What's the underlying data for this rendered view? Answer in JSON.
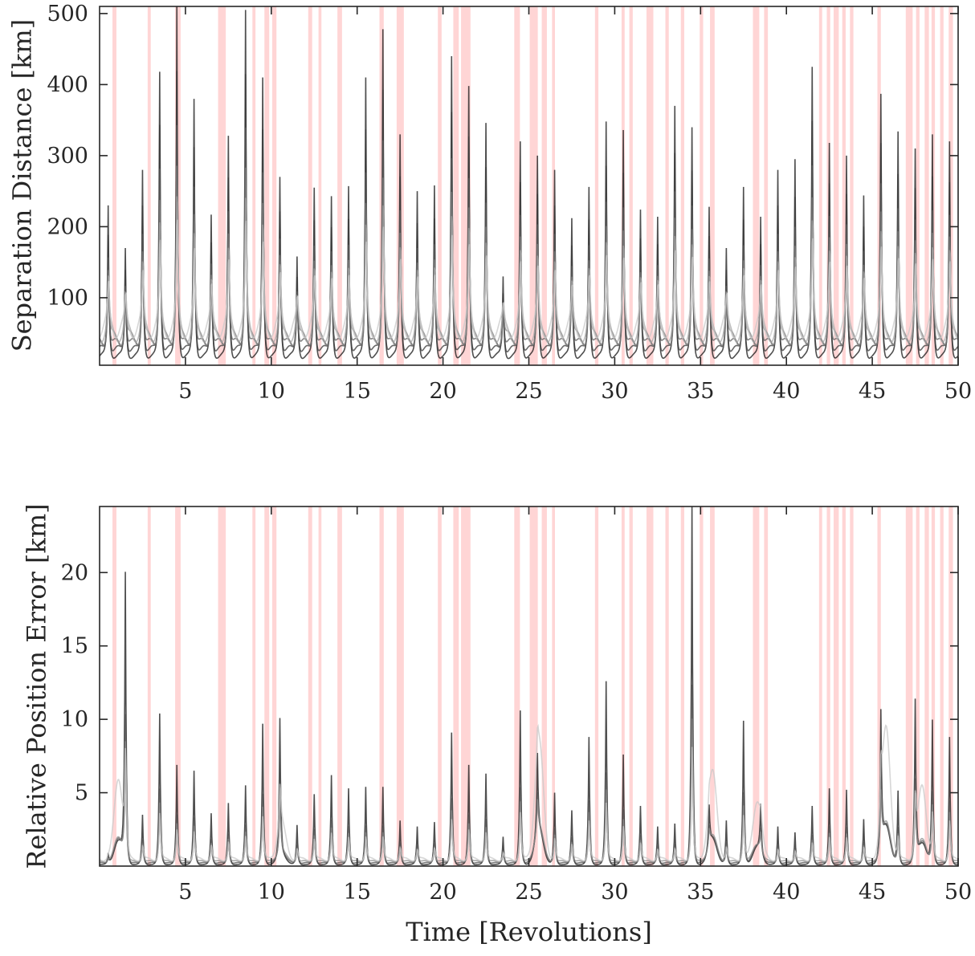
{
  "chart_data": [
    {
      "type": "line",
      "ylabel": "Separation Distance [km]",
      "xlabel": "",
      "xlim": [
        0,
        50
      ],
      "ylim": [
        5,
        510
      ],
      "x_ticks": [
        5,
        10,
        15,
        20,
        25,
        30,
        35,
        40,
        45,
        50
      ],
      "y_ticks": [
        100,
        200,
        300,
        400,
        500
      ],
      "grid": false,
      "line_color": "#000000",
      "shaded_band_color": "#ffb3b3",
      "spike_times": [
        0.5,
        1.5,
        2.5,
        3.5,
        4.5,
        5.5,
        6.5,
        7.5,
        8.5,
        9.5,
        10.5,
        11.5,
        12.5,
        13.5,
        14.5,
        15.5,
        16.5,
        17.5,
        18.5,
        19.5,
        20.5,
        21.5,
        22.5,
        23.5,
        24.5,
        25.5,
        26.5,
        27.5,
        28.5,
        29.5,
        30.5,
        31.5,
        32.5,
        33.5,
        34.5,
        35.5,
        36.5,
        37.5,
        38.5,
        39.5,
        40.5,
        41.5,
        42.5,
        43.5,
        44.5,
        45.5,
        46.5,
        47.5,
        48.5,
        49.5
      ],
      "spike_peaks": [
        230,
        170,
        280,
        418,
        510,
        380,
        217,
        328,
        505,
        410,
        270,
        158,
        255,
        243,
        257,
        410,
        478,
        330,
        250,
        258,
        440,
        398,
        346,
        130,
        320,
        300,
        280,
        212,
        256,
        348,
        336,
        224,
        214,
        370,
        340,
        228,
        170,
        256,
        214,
        280,
        295,
        425,
        318,
        300,
        244,
        387,
        334,
        310,
        330,
        320
      ],
      "baseline_levels": [
        18,
        26,
        34,
        42,
        50,
        58
      ]
    },
    {
      "type": "line",
      "ylabel": "Relative Position Error [km]",
      "xlabel": "Time [Revolutions]",
      "xlim": [
        0,
        50
      ],
      "ylim": [
        0,
        24.5
      ],
      "x_ticks": [
        5,
        10,
        15,
        20,
        25,
        30,
        35,
        40,
        45,
        50
      ],
      "y_ticks": [
        5,
        10,
        15,
        20
      ],
      "grid": false,
      "line_color": "#000000",
      "shaded_band_color": "#ffb3b3",
      "spike_times": [
        0.5,
        1.5,
        2.5,
        3.5,
        4.5,
        5.5,
        6.5,
        7.5,
        8.5,
        9.5,
        10.5,
        11.5,
        12.5,
        13.5,
        14.5,
        15.5,
        16.5,
        17.5,
        18.5,
        19.5,
        20.5,
        21.5,
        22.5,
        23.5,
        24.5,
        25.5,
        26.5,
        27.5,
        28.5,
        29.5,
        30.5,
        31.5,
        32.5,
        33.5,
        34.5,
        35.5,
        36.5,
        37.5,
        38.5,
        39.5,
        40.5,
        41.5,
        42.5,
        43.5,
        44.5,
        45.5,
        46.5,
        47.5,
        48.5,
        49.5
      ],
      "spike_peaks": [
        0.8,
        19.6,
        3.5,
        10.4,
        6.9,
        6.5,
        3.6,
        4.3,
        5.5,
        9.7,
        9.4,
        2.8,
        4.9,
        6.2,
        5.3,
        5.4,
        5.4,
        3.1,
        2.7,
        3.0,
        9.1,
        6.9,
        6.3,
        2.0,
        10.6,
        5.5,
        5.0,
        3.8,
        8.8,
        12.6,
        7.6,
        4.1,
        2.7,
        2.9,
        24.5,
        2.9,
        3.1,
        9.9,
        3.4,
        2.7,
        2.3,
        4.1,
        5.3,
        5.2,
        3.2,
        9.4,
        5.1,
        11.0,
        9.9,
        8.8
      ],
      "baseline_levels": [
        0.1,
        0.2,
        0.3,
        0.45
      ]
    }
  ],
  "shaded_bands": [
    [
      0.75,
      0.98
    ],
    [
      2.8,
      2.98
    ],
    [
      4.4,
      4.72
    ],
    [
      6.9,
      7.35
    ],
    [
      8.9,
      9.08
    ],
    [
      9.6,
      9.88
    ],
    [
      10.05,
      10.3
    ],
    [
      12.15,
      12.38
    ],
    [
      12.75,
      12.92
    ],
    [
      13.85,
      14.12
    ],
    [
      16.3,
      16.55
    ],
    [
      17.3,
      17.72
    ],
    [
      19.7,
      19.92
    ],
    [
      20.6,
      20.92
    ],
    [
      21.05,
      21.6
    ],
    [
      24.15,
      24.48
    ],
    [
      25.05,
      25.52
    ],
    [
      25.75,
      26.05
    ],
    [
      26.35,
      26.52
    ],
    [
      28.85,
      29.05
    ],
    [
      30.4,
      30.58
    ],
    [
      30.85,
      31.05
    ],
    [
      31.85,
      32.25
    ],
    [
      32.95,
      33.15
    ],
    [
      33.85,
      34.05
    ],
    [
      34.95,
      35.15
    ],
    [
      35.55,
      35.82
    ],
    [
      38.05,
      38.42
    ],
    [
      38.7,
      38.92
    ],
    [
      41.9,
      42.08
    ],
    [
      42.35,
      42.55
    ],
    [
      42.75,
      43.05
    ],
    [
      43.25,
      43.45
    ],
    [
      43.7,
      43.9
    ],
    [
      45.3,
      45.5
    ],
    [
      46.95,
      47.35
    ],
    [
      47.55,
      47.75
    ],
    [
      48.05,
      48.3
    ],
    [
      48.45,
      48.65
    ],
    [
      48.95,
      49.15
    ],
    [
      49.45,
      49.7
    ]
  ]
}
